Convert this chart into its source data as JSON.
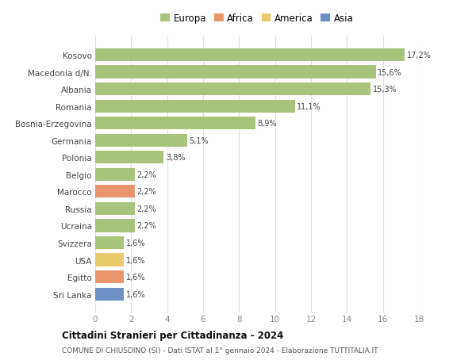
{
  "categories": [
    "Kosovo",
    "Macedonia d/N.",
    "Albania",
    "Romania",
    "Bosnia-Erzegovina",
    "Germania",
    "Polonia",
    "Belgio",
    "Marocco",
    "Russia",
    "Ucraina",
    "Svizzera",
    "USA",
    "Egitto",
    "Sri Lanka"
  ],
  "values": [
    17.2,
    15.6,
    15.3,
    11.1,
    8.9,
    5.1,
    3.8,
    2.2,
    2.2,
    2.2,
    2.2,
    1.6,
    1.6,
    1.6,
    1.6
  ],
  "labels": [
    "17,2%",
    "15,6%",
    "15,3%",
    "11,1%",
    "8,9%",
    "5,1%",
    "3,8%",
    "2,2%",
    "2,2%",
    "2,2%",
    "2,2%",
    "1,6%",
    "1,6%",
    "1,6%",
    "1,6%"
  ],
  "bar_colors": [
    "#a8c47a",
    "#a8c47a",
    "#a8c47a",
    "#a8c47a",
    "#a8c47a",
    "#a8c47a",
    "#a8c47a",
    "#a8c47a",
    "#e8956b",
    "#a8c47a",
    "#a8c47a",
    "#a8c47a",
    "#e8c96b",
    "#e8956b",
    "#6b8ec4"
  ],
  "legend_labels": [
    "Europa",
    "Africa",
    "America",
    "Asia"
  ],
  "legend_colors": [
    "#a8c47a",
    "#e8956b",
    "#e8c96b",
    "#6b8ec4"
  ],
  "title": "Cittadini Stranieri per Cittadinanza - 2024",
  "subtitle": "COMUNE DI CHIUSDINO (SI) - Dati ISTAT al 1° gennaio 2024 - Elaborazione TUTTITALIA.IT",
  "xlim": [
    0,
    18
  ],
  "xticks": [
    0,
    2,
    4,
    6,
    8,
    10,
    12,
    14,
    16,
    18
  ],
  "background_color": "#ffffff",
  "grid_color": "#e0e0e0",
  "bar_height": 0.75
}
